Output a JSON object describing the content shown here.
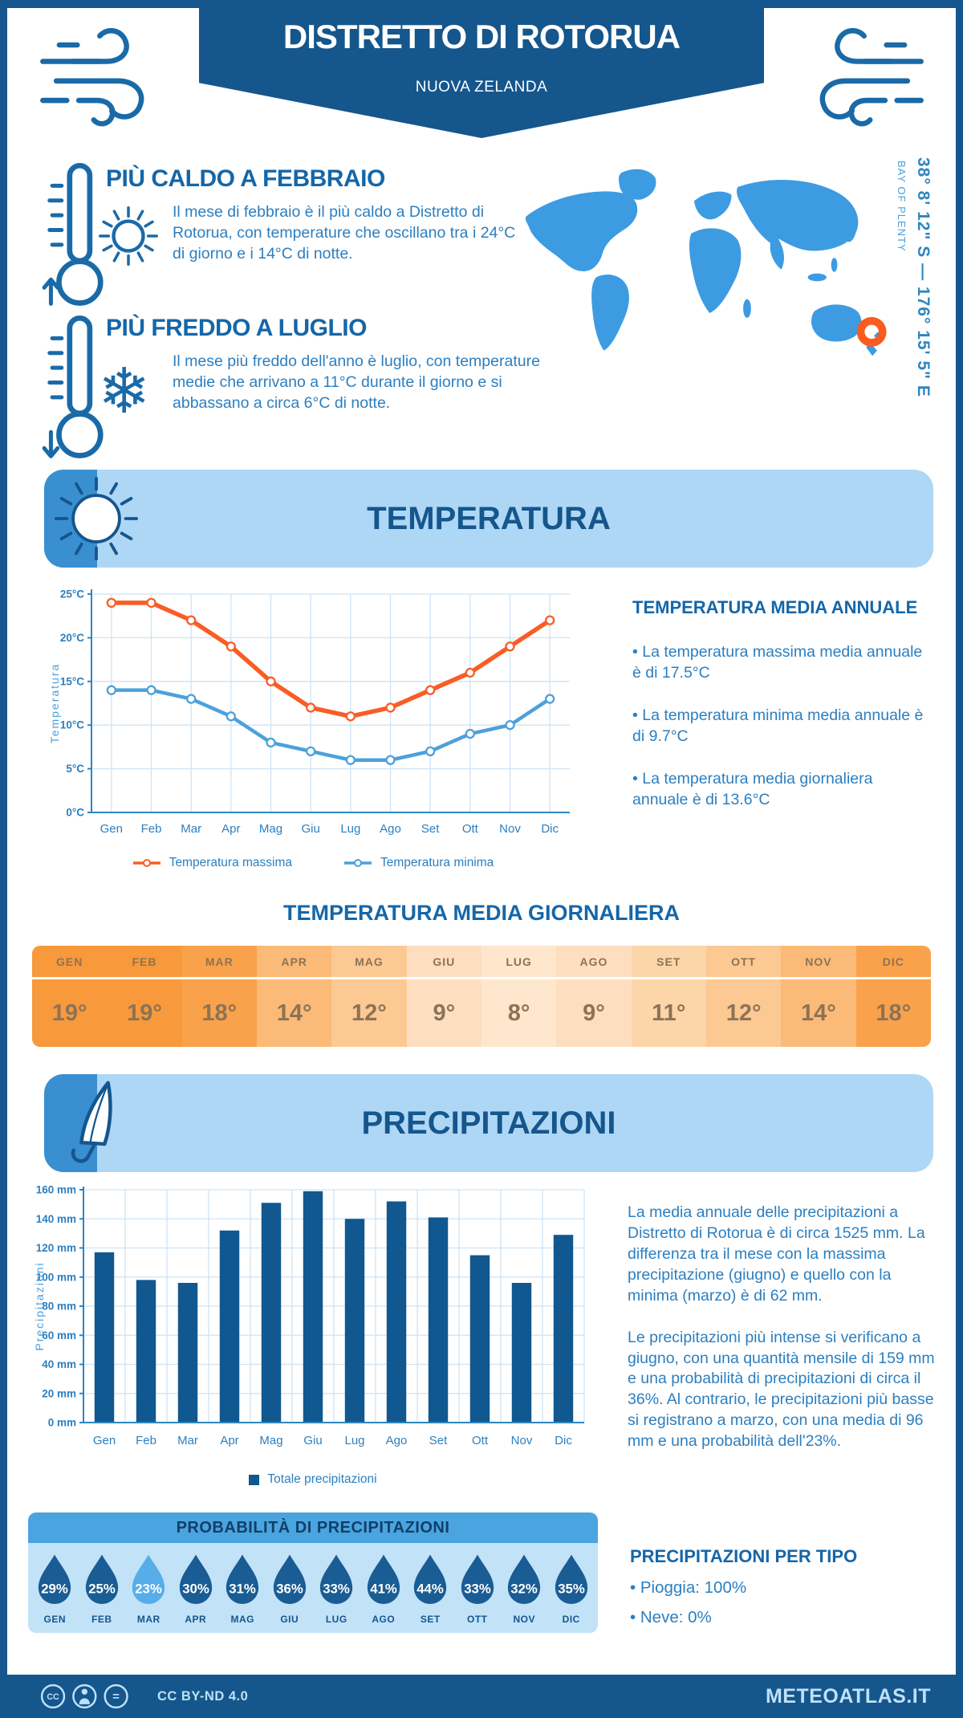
{
  "page": {
    "title": "DISTRETTO DI ROTORUA",
    "subtitle": "NUOVA ZELANDA"
  },
  "colors": {
    "navy": "#15568C",
    "heading": "#1566A8",
    "body": "#2C7FC0",
    "banner_bg": "#AED7F6",
    "banner_strip": "#3A8FD0",
    "map_blue": "#3D9BE2",
    "marker_orange": "#FA5B1E",
    "grid": "#CFE3F4",
    "axis": "#2E86C1",
    "axis_label": "#4C9FD9",
    "temp_max": "#F95D26",
    "temp_min": "#4CA1DB",
    "bar": "#10588F",
    "panel_header": "#49A4E0",
    "panel_bg": "#C2E2F8",
    "drop": "#1A5C94",
    "drop_highlight": "#56ADE8",
    "table_text": "#8C7355",
    "footer_text": "#BFE0F7"
  },
  "icons": {
    "snowflake": "❄"
  },
  "highlights": {
    "warm": {
      "title": "PIÙ CALDO A FEBBRAIO",
      "text": "Il mese di febbraio è il più caldo a Distretto di Rotorua, con temperature che oscillano tra i 24°C di giorno e i 14°C di notte."
    },
    "cold": {
      "title": "PIÙ FREDDO A LUGLIO",
      "text": "Il mese più freddo dell'anno è luglio, con temperature medie che arrivano a 11°C durante il giorno e si abbassano a circa 6°C di notte."
    }
  },
  "map": {
    "coordinates": "38° 8' 12\" S — 176° 15' 5\" E",
    "region": "BAY OF PLENTY"
  },
  "temperature_section": {
    "title": "TEMPERATURA",
    "annual_title": "TEMPERATURA MEDIA ANNUALE",
    "annual_bullets": [
      "• La temperatura massima media annuale è di 17.5°C",
      "• La temperatura minima media annuale è di 9.7°C",
      "• La temperatura media giornaliera annuale è di 13.6°C"
    ],
    "daily_title": "TEMPERATURA MEDIA GIORNALIERA",
    "monthly_table": {
      "months": [
        "GEN",
        "FEB",
        "MAR",
        "APR",
        "MAG",
        "GIU",
        "LUG",
        "AGO",
        "SET",
        "OTT",
        "NOV",
        "DIC"
      ],
      "values": [
        "19°",
        "19°",
        "18°",
        "14°",
        "12°",
        "9°",
        "8°",
        "9°",
        "11°",
        "12°",
        "14°",
        "18°"
      ],
      "colors": [
        "#F8993B",
        "#F8993B",
        "#F9A24B",
        "#FBBA77",
        "#FCC993",
        "#FDDFC0",
        "#FEE7CD",
        "#FDDFC0",
        "#FCD5A9",
        "#FCC993",
        "#FBBA77",
        "#F9A24B"
      ],
      "text_color": "#8C7355"
    }
  },
  "precipitation_section": {
    "title": "PRECIPITAZIONI",
    "paragraphs": [
      "La media annuale delle precipitazioni a Distretto di Rotorua è di circa 1525 mm. La differenza tra il mese con la massima precipitazione (giugno) e quello con la minima (marzo) è di 62 mm.",
      "Le precipitazioni più intense si verificano a giugno, con una quantità mensile di 159 mm e una probabilità di precipitazioni di circa il 36%. Al contrario, le precipitazioni più basse si registrano a marzo, con una media di 96 mm e una probabilità dell'23%."
    ],
    "probability": {
      "title": "PROBABILITÀ DI PRECIPITAZIONI",
      "months": [
        "GEN",
        "FEB",
        "MAR",
        "APR",
        "MAG",
        "GIU",
        "LUG",
        "AGO",
        "SET",
        "OTT",
        "NOV",
        "DIC"
      ],
      "values": [
        "29%",
        "25%",
        "23%",
        "30%",
        "31%",
        "36%",
        "33%",
        "41%",
        "44%",
        "33%",
        "32%",
        "35%"
      ],
      "highlight_index": 2
    },
    "by_type": {
      "title": "PRECIPITAZIONI PER TIPO",
      "bullets": [
        "• Pioggia: 100%",
        "• Neve: 0%"
      ]
    }
  },
  "footer": {
    "license": "CC BY-ND 4.0",
    "site": "METEOATLAS.IT"
  },
  "chart_data": [
    {
      "type": "line",
      "title": "Temperatura media mensile",
      "categories": [
        "Gen",
        "Feb",
        "Mar",
        "Apr",
        "Mag",
        "Giu",
        "Lug",
        "Ago",
        "Set",
        "Ott",
        "Nov",
        "Dic"
      ],
      "series": [
        {
          "name": "Temperatura massima",
          "color": "#F95D26",
          "values": [
            24,
            24,
            22,
            19,
            15,
            12,
            11,
            12,
            14,
            16,
            19,
            22
          ]
        },
        {
          "name": "Temperatura minima",
          "color": "#4CA1DB",
          "values": [
            14,
            14,
            13,
            11,
            8,
            7,
            6,
            6,
            7,
            9,
            10,
            13
          ]
        }
      ],
      "xlabel": "",
      "ylabel": "Temperatura",
      "ylim": [
        0,
        25
      ],
      "ytick_step": 5,
      "ytick_suffix": "°C",
      "grid": true,
      "legend_position": "bottom"
    },
    {
      "type": "bar",
      "title": "Precipitazioni mensili totali",
      "categories": [
        "Gen",
        "Feb",
        "Mar",
        "Apr",
        "Mag",
        "Giu",
        "Lug",
        "Ago",
        "Set",
        "Ott",
        "Nov",
        "Dic"
      ],
      "values": [
        117,
        98,
        96,
        132,
        151,
        159,
        140,
        152,
        141,
        115,
        96,
        129
      ],
      "color": "#10588F",
      "xlabel": "",
      "ylabel": "Precipitazioni",
      "ylim": [
        0,
        160
      ],
      "ytick_step": 20,
      "ytick_suffix": " mm",
      "grid": true,
      "legend": "Totale precipitazioni"
    }
  ]
}
